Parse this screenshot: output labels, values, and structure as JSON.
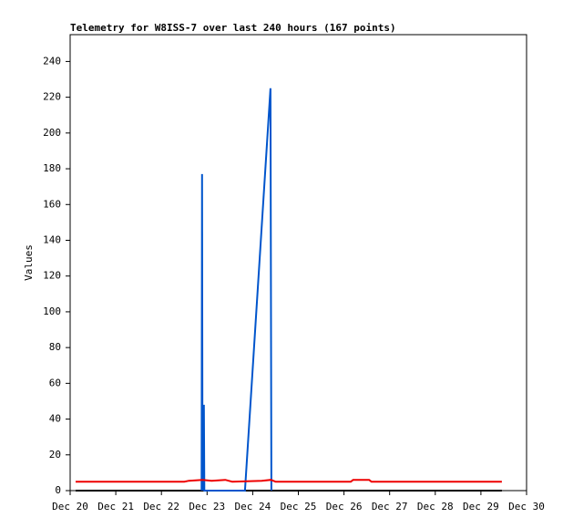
{
  "chart_data": {
    "type": "line",
    "title": "Telemetry for W8ISS-7 over last 240 hours (167 points)",
    "y_label": "Values",
    "xlim": [
      20,
      30
    ],
    "xticks": [
      {
        "value": 20,
        "label": "Dec 20"
      },
      {
        "value": 21,
        "label": "Dec 21"
      },
      {
        "value": 22,
        "label": "Dec 22"
      },
      {
        "value": 23,
        "label": "Dec 23"
      },
      {
        "value": 24,
        "label": "Dec 24"
      },
      {
        "value": 25,
        "label": "Dec 25"
      },
      {
        "value": 26,
        "label": "Dec 26"
      },
      {
        "value": 27,
        "label": "Dec 27"
      },
      {
        "value": 28,
        "label": "Dec 28"
      },
      {
        "value": 29,
        "label": "Dec 29"
      },
      {
        "value": 30,
        "label": "Dec 30"
      }
    ],
    "ylim": [
      0,
      255
    ],
    "yticks": [
      0,
      20,
      40,
      60,
      80,
      100,
      120,
      140,
      160,
      180,
      200,
      220,
      240
    ],
    "series": [
      {
        "color": "#000000",
        "x": [
          20.12,
          29.46
        ],
        "values": [
          0,
          0
        ]
      },
      {
        "color": "#0055cc",
        "x": [
          22.88,
          22.89,
          22.9,
          22.93,
          22.94,
          23.83,
          24.39,
          24.41
        ],
        "values": [
          0,
          177,
          0,
          48,
          0,
          0,
          225,
          0
        ]
      },
      {
        "color": "#ee0000",
        "x": [
          20.12,
          22.5,
          22.6,
          22.9,
          23.1,
          23.4,
          23.55,
          24.2,
          24.4,
          24.5,
          26.15,
          26.2,
          26.55,
          26.6,
          29.46
        ],
        "values": [
          5,
          5,
          5.5,
          6,
          5.5,
          6,
          5,
          5.5,
          6,
          5,
          5,
          6,
          6,
          5,
          5
        ]
      }
    ]
  }
}
